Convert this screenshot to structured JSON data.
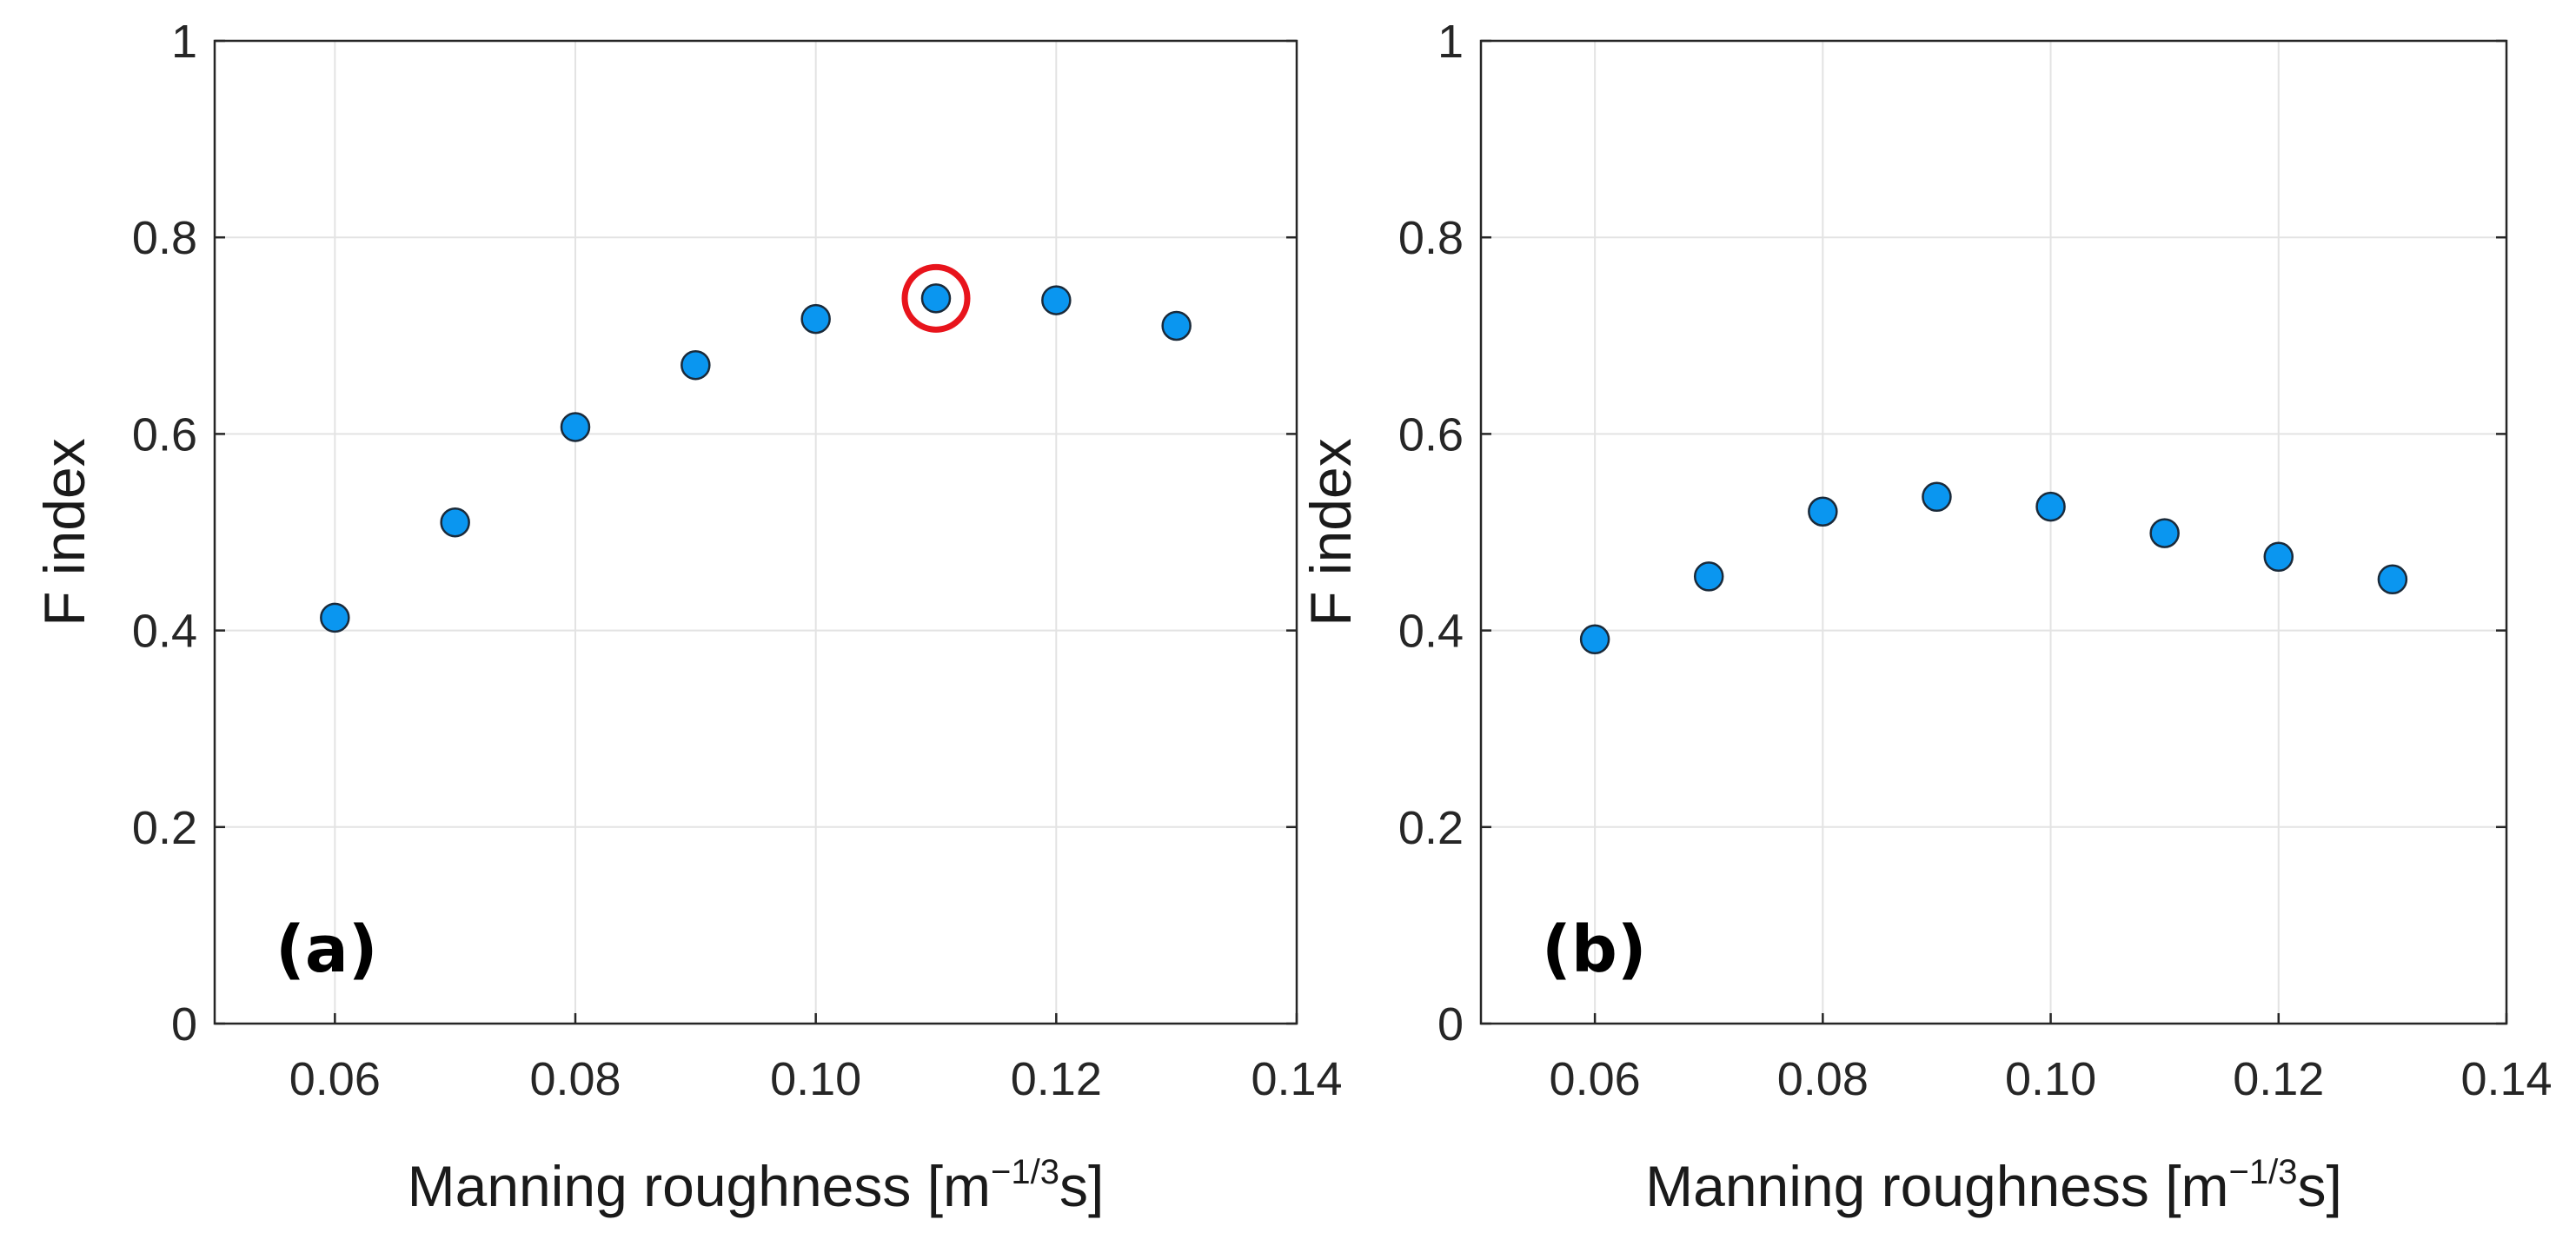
{
  "chart_data": [
    {
      "type": "scatter",
      "panel_label": "(a)",
      "xlabel": "Manning roughness [m",
      "xlabel_sup": "−1/3",
      "xlabel_tail": "s]",
      "ylabel": "F index",
      "xlim": [
        0.05,
        0.14
      ],
      "ylim": [
        0,
        1
      ],
      "xticks": [
        "0.06",
        "0.08",
        "0.10",
        "0.12",
        "0.14"
      ],
      "xtick_values": [
        0.06,
        0.08,
        0.1,
        0.12,
        0.14
      ],
      "yticks": [
        "0",
        "0.2",
        "0.4",
        "0.6",
        "0.8",
        "1"
      ],
      "ytick_values": [
        0,
        0.2,
        0.4,
        0.6,
        0.8,
        1
      ],
      "grid": true,
      "x": [
        0.06,
        0.07,
        0.08,
        0.09,
        0.1,
        0.11,
        0.12,
        0.13
      ],
      "y": [
        0.413,
        0.51,
        0.607,
        0.67,
        0.717,
        0.738,
        0.736,
        0.71
      ],
      "highlight_x": 0.11,
      "highlight_y": 0.738,
      "marker_color": "#0A96F0",
      "highlight_color": "#E8141C"
    },
    {
      "type": "scatter",
      "panel_label": "(b)",
      "xlabel": "Manning roughness [m",
      "xlabel_sup": "−1/3",
      "xlabel_tail": "s]",
      "ylabel": "F index",
      "xlim": [
        0.05,
        0.14
      ],
      "ylim": [
        0,
        1
      ],
      "xticks": [
        "0.06",
        "0.08",
        "0.10",
        "0.12",
        "0.14"
      ],
      "xtick_values": [
        0.06,
        0.08,
        0.1,
        0.12,
        0.14
      ],
      "yticks": [
        "0",
        "0.2",
        "0.4",
        "0.6",
        "0.8",
        "1"
      ],
      "ytick_values": [
        0,
        0.2,
        0.4,
        0.6,
        0.8,
        1
      ],
      "grid": true,
      "x": [
        0.06,
        0.07,
        0.08,
        0.09,
        0.1,
        0.11,
        0.12,
        0.13
      ],
      "y": [
        0.391,
        0.455,
        0.521,
        0.536,
        0.526,
        0.499,
        0.475,
        0.452
      ],
      "marker_color": "#0A96F0"
    }
  ]
}
